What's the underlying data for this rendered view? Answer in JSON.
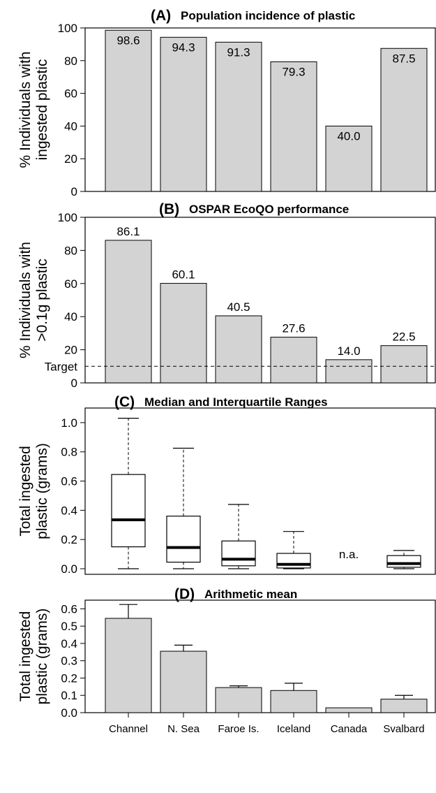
{
  "categories": [
    "Channel",
    "N. Sea",
    "Faroe Is.",
    "Iceland",
    "Canada",
    "Svalbard"
  ],
  "chart_data": [
    {
      "type": "bar",
      "panel": "(A)",
      "title": "Population incidence of plastic",
      "ylabel": [
        "% Individuals with",
        "ingested plastic"
      ],
      "ylim": [
        0,
        100
      ],
      "yticks": [
        0,
        20,
        40,
        60,
        80,
        100
      ],
      "categories": [
        "Channel",
        "N. Sea",
        "Faroe Is.",
        "Iceland",
        "Canada",
        "Svalbard"
      ],
      "values": [
        98.6,
        94.3,
        91.3,
        79.3,
        40.0,
        87.5
      ],
      "data_labels": [
        "98.6",
        "94.3",
        "91.3",
        "79.3",
        "40.0",
        "87.5"
      ],
      "data_label_position": "inside-top",
      "bar_color": "#d3d3d3",
      "grid": false
    },
    {
      "type": "bar",
      "panel": "(B)",
      "title": "OSPAR EcoQO performance",
      "ylabel": [
        "% Individuals with",
        ">0.1g plastic"
      ],
      "ylim": [
        0,
        100
      ],
      "yticks": [
        0,
        20,
        40,
        60,
        80,
        100
      ],
      "categories": [
        "Channel",
        "N. Sea",
        "Faroe Is.",
        "Iceland",
        "Canada",
        "Svalbard"
      ],
      "values": [
        86.1,
        60.1,
        40.5,
        27.6,
        14.0,
        22.5
      ],
      "data_labels": [
        "86.1",
        "60.1",
        "40.5",
        "27.6",
        "14.0",
        "22.5"
      ],
      "data_label_position": "above",
      "target": {
        "label": "Target",
        "value": 10
      },
      "bar_color": "#d3d3d3",
      "grid": false
    },
    {
      "type": "box",
      "panel": "(C)",
      "title": "Median and Interquartile Ranges",
      "ylabel": [
        "Total ingested",
        "plastic (grams)"
      ],
      "ylim": [
        0,
        1.0
      ],
      "yticks": [
        0.0,
        0.2,
        0.4,
        0.6,
        0.8,
        1.0
      ],
      "ytick_labels": [
        "0.0",
        "0.2",
        "0.4",
        "0.6",
        "0.8",
        "1.0"
      ],
      "categories": [
        "Channel",
        "N. Sea",
        "Faroe Is.",
        "Iceland",
        "Canada",
        "Svalbard"
      ],
      "boxes": [
        {
          "whisker_low": 0.0,
          "q1": 0.15,
          "median": 0.335,
          "q3": 0.645,
          "whisker_high": 1.03
        },
        {
          "whisker_low": 0.0,
          "q1": 0.045,
          "median": 0.145,
          "q3": 0.36,
          "whisker_high": 0.825
        },
        {
          "whisker_low": 0.0,
          "q1": 0.02,
          "median": 0.065,
          "q3": 0.19,
          "whisker_high": 0.44
        },
        {
          "whisker_low": 0.0,
          "q1": 0.005,
          "median": 0.03,
          "q3": 0.105,
          "whisker_high": 0.255
        },
        null,
        {
          "whisker_low": 0.0,
          "q1": 0.01,
          "median": 0.035,
          "q3": 0.09,
          "whisker_high": 0.125
        }
      ],
      "missing_label": "n.a.",
      "grid": false
    },
    {
      "type": "bar",
      "panel": "(D)",
      "title": "Arithmetic mean",
      "ylabel": [
        "Total ingested",
        "plastic (grams)"
      ],
      "ylim": [
        0,
        0.6
      ],
      "yticks": [
        0.0,
        0.1,
        0.2,
        0.3,
        0.4,
        0.5,
        0.6
      ],
      "ytick_labels": [
        "0.0",
        "0.1",
        "0.2",
        "0.3",
        "0.4",
        "0.5",
        "0.6"
      ],
      "categories": [
        "Channel",
        "N. Sea",
        "Faroe Is.",
        "Iceland",
        "Canada",
        "Svalbard"
      ],
      "values": [
        0.545,
        0.355,
        0.145,
        0.128,
        0.028,
        0.078
      ],
      "error_upper": [
        0.625,
        0.39,
        0.155,
        0.17,
        null,
        0.1
      ],
      "bar_color": "#d3d3d3",
      "grid": false
    }
  ]
}
